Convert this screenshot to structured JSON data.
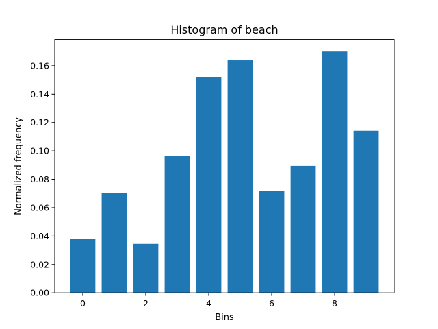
{
  "chart_data": {
    "type": "bar",
    "title": "Histogram of beach",
    "xlabel": "Bins",
    "ylabel": "Normalized frequency",
    "x": [
      0,
      1,
      2,
      3,
      4,
      5,
      6,
      7,
      8,
      9
    ],
    "values": [
      0.038,
      0.0705,
      0.0345,
      0.0963,
      0.1518,
      0.1638,
      0.0718,
      0.0895,
      0.17,
      0.1142
    ],
    "xticks": [
      0,
      2,
      4,
      6,
      8
    ],
    "xtick_labels": [
      "0",
      "2",
      "4",
      "6",
      "8"
    ],
    "yticks": [
      0,
      0.02,
      0.04,
      0.06,
      0.08,
      0.1,
      0.12,
      0.14,
      0.16
    ],
    "ytick_labels": [
      "0.00",
      "0.02",
      "0.04",
      "0.06",
      "0.08",
      "0.10",
      "0.12",
      "0.14",
      "0.16"
    ],
    "xlim": [
      -0.89,
      9.89
    ],
    "ylim": [
      0,
      0.1785
    ],
    "bar_width": 0.8,
    "bar_color": "#1f77b4",
    "grid": false,
    "legend": "none"
  }
}
